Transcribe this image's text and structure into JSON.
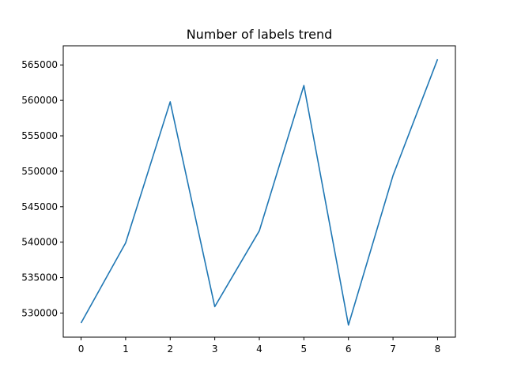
{
  "chart_data": {
    "type": "line",
    "title": "Number of labels trend",
    "xlabel": "",
    "ylabel": "",
    "x": [
      0,
      1,
      2,
      3,
      4,
      5,
      6,
      7,
      8
    ],
    "series": [
      {
        "values": [
          528600,
          539900,
          559800,
          530900,
          541600,
          562100,
          528300,
          549400,
          565800
        ]
      }
    ],
    "xlim": [
      -0.4,
      8.4
    ],
    "ylim": [
      526600,
      567700
    ],
    "xticks": [
      0,
      1,
      2,
      3,
      4,
      5,
      6,
      7,
      8
    ],
    "yticks": [
      530000,
      535000,
      540000,
      545000,
      550000,
      555000,
      560000,
      565000
    ],
    "grid": false,
    "line_color": "#1f77b4"
  }
}
